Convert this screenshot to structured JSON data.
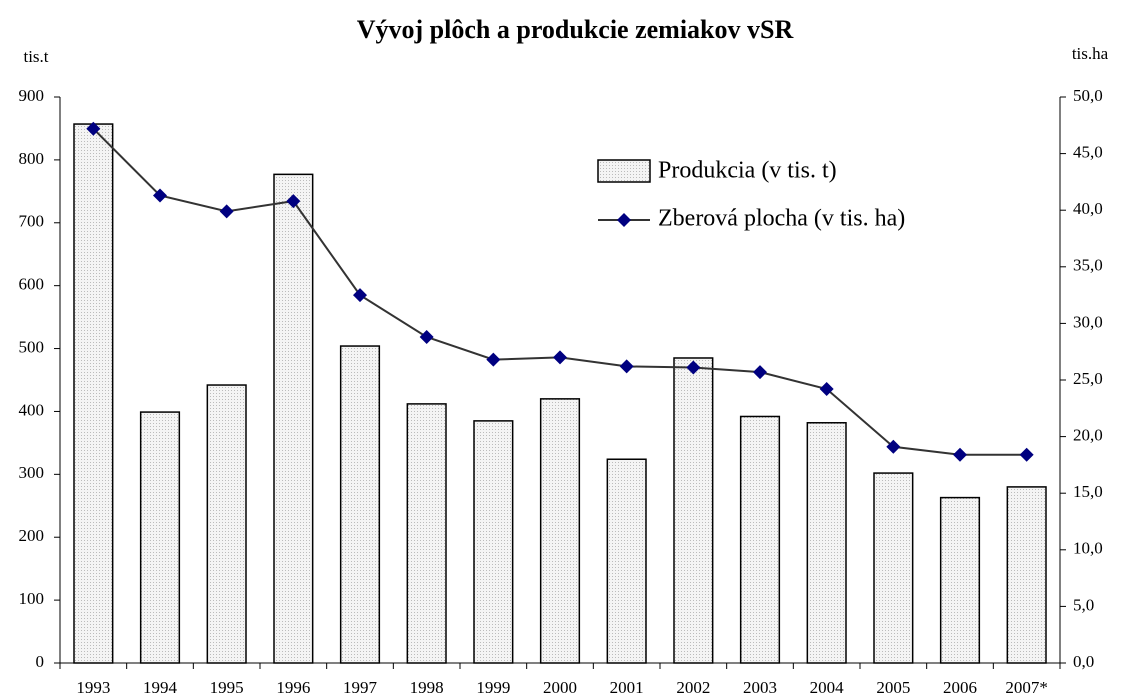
{
  "chart_data": {
    "type": "bar_line",
    "title": "Vývoj plôch a produkcie zemiakov vSR",
    "y_label": "tis.t",
    "y2_label": "tis.ha",
    "categories": [
      "1993",
      "1994",
      "1995",
      "1996",
      "1997",
      "1998",
      "1999",
      "2000",
      "2001",
      "2002",
      "2003",
      "2004",
      "2005",
      "2006",
      "2007*"
    ],
    "series": [
      {
        "name": "Produkcia (v tis. t)",
        "color": "#eeeeee",
        "type": "bar",
        "values": [
          857,
          399,
          442,
          777,
          504,
          412,
          385,
          420,
          324,
          485,
          392,
          382,
          302,
          263,
          280
        ]
      },
      {
        "name": "Zberová plocha (v tis. ha)",
        "color": "#000080",
        "type": "line",
        "axis": "y2",
        "values": [
          47.2,
          41.3,
          39.9,
          40.8,
          32.5,
          28.8,
          26.8,
          27.0,
          26.2,
          26.1,
          25.7,
          24.2,
          19.1,
          18.4,
          18.4
        ]
      }
    ],
    "ylim": [
      0,
      900
    ],
    "yticks": [
      0,
      100,
      200,
      300,
      400,
      500,
      600,
      700,
      800,
      900
    ],
    "y2lim": [
      0,
      50
    ],
    "y2ticks": [
      {
        "value": 0,
        "label": "0,0"
      },
      {
        "value": 5,
        "label": "5,0"
      },
      {
        "value": 10,
        "label": "10,0"
      },
      {
        "value": 15,
        "label": "15,0"
      },
      {
        "value": 20,
        "label": "20,0"
      },
      {
        "value": 25,
        "label": "25,0"
      },
      {
        "value": 30,
        "label": "30,0"
      },
      {
        "value": 35,
        "label": "35,0"
      },
      {
        "value": 40,
        "label": "40,0"
      },
      {
        "value": 45,
        "label": "45,0"
      },
      {
        "value": 50,
        "label": "50,0"
      }
    ],
    "grid": false
  }
}
